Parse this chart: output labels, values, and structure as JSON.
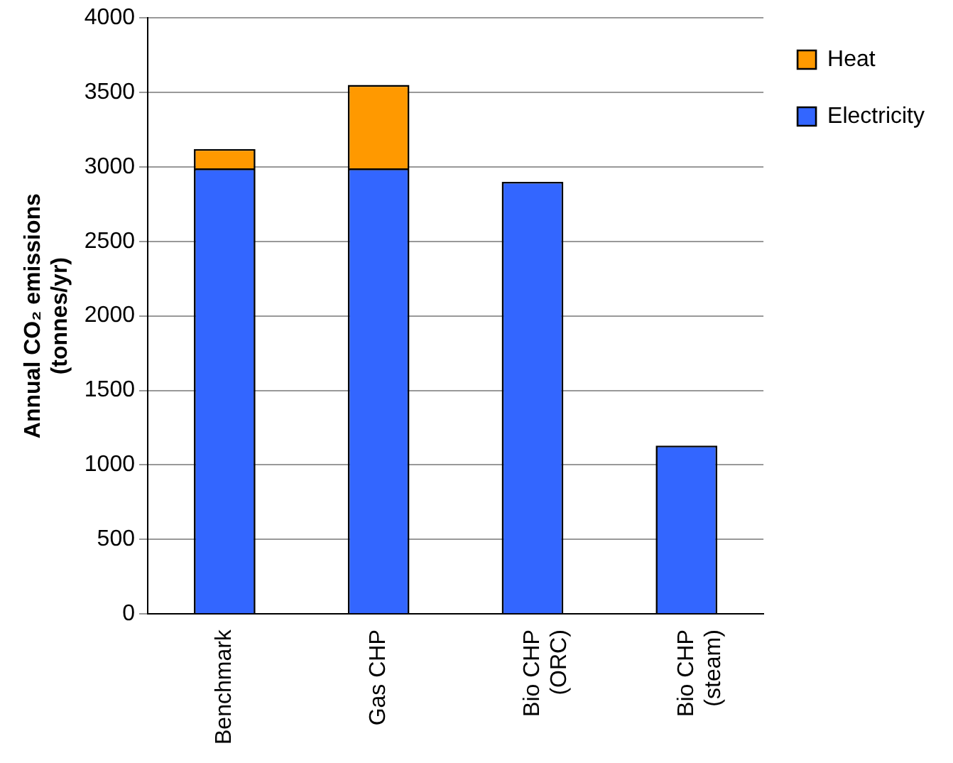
{
  "chart_data": {
    "type": "bar",
    "stacked": true,
    "ylabel": "Annual CO₂ emissions\n(tonnes/yr)",
    "categories": [
      "Benchmark",
      "Gas CHP",
      "Bio CHP\n(ORC)",
      "Bio CHP\n(steam)"
    ],
    "series": [
      {
        "name": "Electricity",
        "color": "#3366ff",
        "values": [
          2990,
          2990,
          2900,
          1130
        ]
      },
      {
        "name": "Heat",
        "color": "#ff9900",
        "values": [
          130,
          560,
          null,
          null
        ]
      }
    ],
    "ylim": [
      0,
      4000
    ],
    "yticks": [
      0,
      500,
      1000,
      1500,
      2000,
      2500,
      3000,
      3500,
      4000
    ],
    "grid": "y",
    "legend": "right"
  }
}
